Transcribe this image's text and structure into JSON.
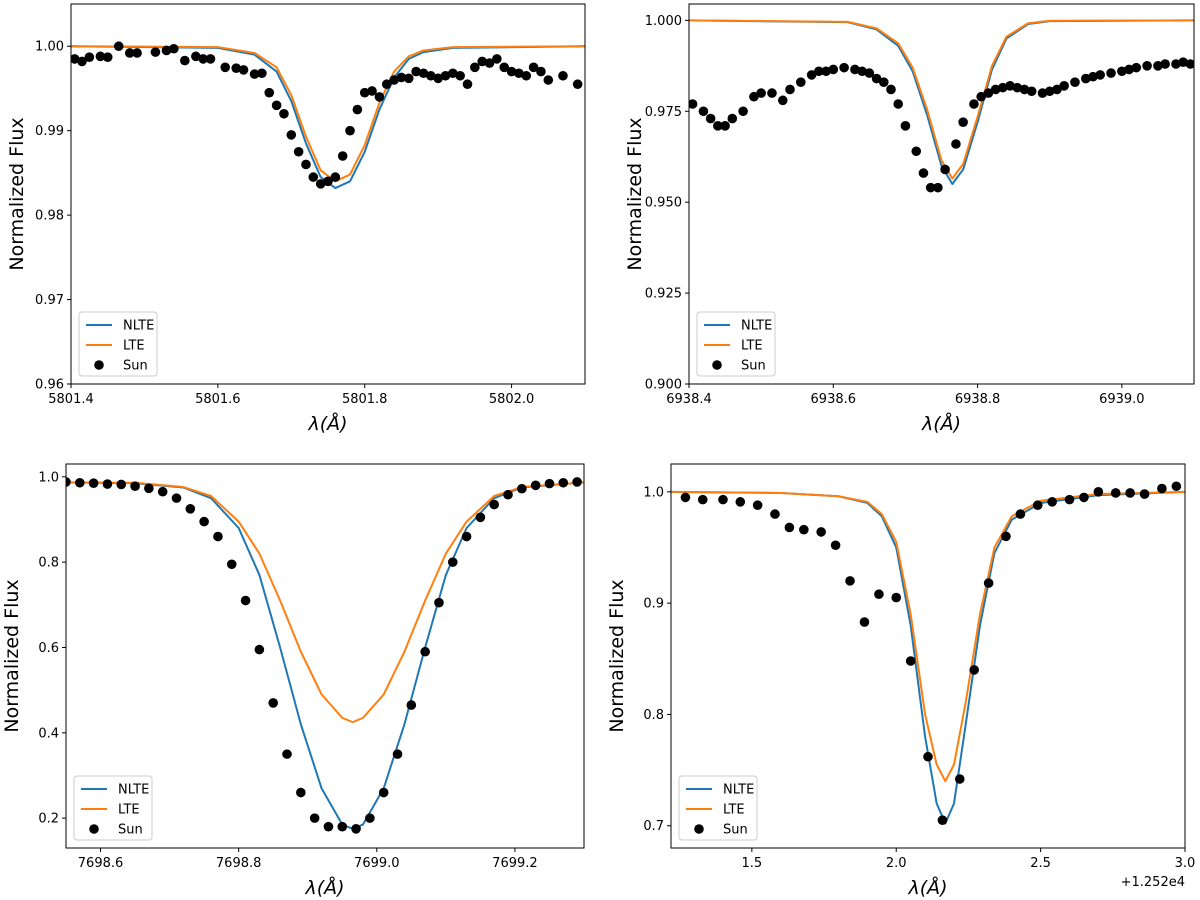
{
  "colors": {
    "nlte": "#1f77b4",
    "lte": "#ff7f0e",
    "sun": "#000000"
  },
  "chart_data": [
    {
      "type": "line",
      "title": "",
      "xlabel": "λ(Å)",
      "ylabel": "Normalized Flux",
      "xlim": [
        5801.4,
        5802.1
      ],
      "ylim": [
        0.96,
        1.005
      ],
      "xticks": [
        5801.4,
        5801.6,
        5801.8,
        5802.0
      ],
      "xtick_labels": [
        "5801.4",
        "5801.6",
        "5801.8",
        "5802.0"
      ],
      "yticks": [
        0.96,
        0.97,
        0.98,
        0.99,
        1.0
      ],
      "ytick_labels": [
        "0.96",
        "0.97",
        "0.98",
        "0.99",
        "1.00"
      ],
      "x_offset_label": "",
      "legend": [
        "NLTE",
        "LTE",
        "Sun"
      ],
      "legend_loc": "lower left",
      "series": [
        {
          "name": "NLTE",
          "style": "line",
          "x": [
            5801.4,
            5801.6,
            5801.65,
            5801.68,
            5801.7,
            5801.72,
            5801.74,
            5801.76,
            5801.78,
            5801.8,
            5801.82,
            5801.84,
            5801.86,
            5801.88,
            5801.92,
            5802.1
          ],
          "y": [
            1.0,
            0.9998,
            0.999,
            0.997,
            0.9935,
            0.9885,
            0.9845,
            0.9832,
            0.984,
            0.9875,
            0.9925,
            0.9963,
            0.9985,
            0.9993,
            0.9998,
            1.0
          ]
        },
        {
          "name": "LTE",
          "style": "line",
          "x": [
            5801.4,
            5801.6,
            5801.65,
            5801.68,
            5801.7,
            5801.72,
            5801.74,
            5801.76,
            5801.78,
            5801.8,
            5801.82,
            5801.84,
            5801.86,
            5801.88,
            5801.92,
            5802.1
          ],
          "y": [
            1.0,
            0.9999,
            0.9992,
            0.9975,
            0.9942,
            0.9893,
            0.9853,
            0.984,
            0.9848,
            0.9883,
            0.9933,
            0.997,
            0.9988,
            0.9995,
            0.9999,
            1.0
          ]
        },
        {
          "name": "Sun",
          "style": "scatter",
          "x": [
            5801.405,
            5801.415,
            5801.425,
            5801.44,
            5801.45,
            5801.465,
            5801.48,
            5801.49,
            5801.515,
            5801.53,
            5801.54,
            5801.555,
            5801.57,
            5801.58,
            5801.59,
            5801.61,
            5801.625,
            5801.635,
            5801.65,
            5801.66,
            5801.67,
            5801.68,
            5801.69,
            5801.7,
            5801.71,
            5801.72,
            5801.73,
            5801.74,
            5801.75,
            5801.76,
            5801.77,
            5801.78,
            5801.79,
            5801.8,
            5801.81,
            5801.82,
            5801.83,
            5801.84,
            5801.85,
            5801.86,
            5801.87,
            5801.88,
            5801.89,
            5801.9,
            5801.91,
            5801.92,
            5801.93,
            5801.94,
            5801.95,
            5801.96,
            5801.97,
            5801.98,
            5801.99,
            5802.0,
            5802.01,
            5802.02,
            5802.03,
            5802.04,
            5802.05,
            5802.07,
            5802.09
          ],
          "y": [
            0.9985,
            0.9982,
            0.9987,
            0.9988,
            0.9987,
            1.0,
            0.9992,
            0.9992,
            0.9993,
            0.9995,
            0.9997,
            0.9983,
            0.9988,
            0.9985,
            0.9985,
            0.9975,
            0.9974,
            0.9972,
            0.9967,
            0.9968,
            0.9945,
            0.993,
            0.992,
            0.9895,
            0.9875,
            0.986,
            0.9845,
            0.9837,
            0.984,
            0.9845,
            0.987,
            0.99,
            0.9925,
            0.9945,
            0.9947,
            0.994,
            0.9955,
            0.996,
            0.9963,
            0.9962,
            0.997,
            0.9968,
            0.9965,
            0.9962,
            0.9965,
            0.9968,
            0.9965,
            0.9955,
            0.9975,
            0.9982,
            0.998,
            0.9985,
            0.9975,
            0.997,
            0.9968,
            0.9965,
            0.9975,
            0.997,
            0.996,
            0.9965,
            0.9955
          ]
        }
      ]
    },
    {
      "type": "line",
      "title": "",
      "xlabel": "λ(Å)",
      "ylabel": "Normalized Flux",
      "xlim": [
        6938.4,
        6939.1
      ],
      "ylim": [
        0.9,
        1.0045
      ],
      "xticks": [
        6938.4,
        6938.6,
        6938.8,
        6939.0
      ],
      "xtick_labels": [
        "6938.4",
        "6938.6",
        "6938.8",
        "6939.0"
      ],
      "yticks": [
        0.9,
        0.925,
        0.95,
        0.975,
        1.0
      ],
      "ytick_labels": [
        "0.900",
        "0.925",
        "0.950",
        "0.975",
        "1.000"
      ],
      "x_offset_label": "",
      "legend": [
        "NLTE",
        "LTE",
        "Sun"
      ],
      "legend_loc": "lower left",
      "series": [
        {
          "name": "NLTE",
          "style": "line",
          "x": [
            6938.4,
            6938.62,
            6938.66,
            6938.69,
            6938.71,
            6938.73,
            6938.75,
            6938.765,
            6938.78,
            6938.8,
            6938.82,
            6938.84,
            6938.87,
            6938.9,
            6939.1
          ],
          "y": [
            1.0,
            0.9995,
            0.9975,
            0.993,
            0.986,
            0.974,
            0.96,
            0.955,
            0.959,
            0.972,
            0.9865,
            0.995,
            0.999,
            0.9998,
            1.0
          ]
        },
        {
          "name": "LTE",
          "style": "line",
          "x": [
            6938.4,
            6938.62,
            6938.66,
            6938.69,
            6938.71,
            6938.73,
            6938.75,
            6938.765,
            6938.78,
            6938.8,
            6938.82,
            6938.84,
            6938.87,
            6938.9,
            6939.1
          ],
          "y": [
            1.0,
            0.9996,
            0.9978,
            0.9937,
            0.987,
            0.9755,
            0.9615,
            0.9565,
            0.9605,
            0.9735,
            0.9875,
            0.9955,
            0.9992,
            0.9999,
            1.0
          ]
        },
        {
          "name": "Sun",
          "style": "scatter",
          "x": [
            6938.405,
            6938.42,
            6938.43,
            6938.44,
            6938.45,
            6938.46,
            6938.475,
            6938.49,
            6938.5,
            6938.515,
            6938.53,
            6938.54,
            6938.555,
            6938.57,
            6938.58,
            6938.59,
            6938.6,
            6938.615,
            6938.63,
            6938.64,
            6938.65,
            6938.66,
            6938.67,
            6938.68,
            6938.69,
            6938.7,
            6938.715,
            6938.725,
            6938.735,
            6938.745,
            6938.755,
            6938.77,
            6938.78,
            6938.795,
            6938.805,
            6938.815,
            6938.825,
            6938.835,
            6938.845,
            6938.855,
            6938.865,
            6938.875,
            6938.89,
            6938.9,
            6938.91,
            6938.92,
            6938.935,
            6938.95,
            6938.96,
            6938.97,
            6938.985,
            6939.0,
            6939.01,
            6939.02,
            6939.035,
            6939.05,
            6939.06,
            6939.075,
            6939.085,
            6939.095
          ],
          "y": [
            0.977,
            0.975,
            0.973,
            0.971,
            0.971,
            0.973,
            0.975,
            0.979,
            0.98,
            0.98,
            0.978,
            0.981,
            0.983,
            0.985,
            0.986,
            0.986,
            0.9865,
            0.987,
            0.9865,
            0.986,
            0.9855,
            0.984,
            0.983,
            0.981,
            0.977,
            0.971,
            0.964,
            0.958,
            0.954,
            0.954,
            0.959,
            0.966,
            0.972,
            0.977,
            0.979,
            0.98,
            0.981,
            0.9815,
            0.982,
            0.9815,
            0.981,
            0.9805,
            0.98,
            0.9805,
            0.981,
            0.982,
            0.983,
            0.984,
            0.9845,
            0.985,
            0.9855,
            0.986,
            0.9865,
            0.987,
            0.9875,
            0.9875,
            0.988,
            0.988,
            0.9885,
            0.988
          ]
        }
      ]
    },
    {
      "type": "line",
      "title": "",
      "xlabel": "λ(Å)",
      "ylabel": "Normalized Flux",
      "xlim": [
        7698.55,
        7699.3
      ],
      "ylim": [
        0.13,
        1.03
      ],
      "xticks": [
        7698.6,
        7698.8,
        7699.0,
        7699.2
      ],
      "xtick_labels": [
        "7698.6",
        "7698.8",
        "7699.0",
        "7699.2"
      ],
      "yticks": [
        0.2,
        0.4,
        0.6,
        0.8,
        1.0
      ],
      "ytick_labels": [
        "0.2",
        "0.4",
        "0.6",
        "0.8",
        "1.0"
      ],
      "x_offset_label": "",
      "legend": [
        "NLTE",
        "LTE",
        "Sun"
      ],
      "legend_loc": "lower left",
      "series": [
        {
          "name": "NLTE",
          "style": "line",
          "x": [
            7698.55,
            7698.65,
            7698.72,
            7698.76,
            7698.8,
            7698.83,
            7698.86,
            7698.89,
            7698.92,
            7698.95,
            7698.965,
            7698.98,
            7699.01,
            7699.04,
            7699.07,
            7699.1,
            7699.13,
            7699.17,
            7699.21,
            7699.3
          ],
          "y": [
            0.987,
            0.985,
            0.975,
            0.95,
            0.88,
            0.77,
            0.6,
            0.42,
            0.27,
            0.185,
            0.175,
            0.185,
            0.27,
            0.42,
            0.6,
            0.77,
            0.88,
            0.95,
            0.975,
            0.987
          ]
        },
        {
          "name": "LTE",
          "style": "line",
          "x": [
            7698.55,
            7698.65,
            7698.72,
            7698.76,
            7698.8,
            7698.83,
            7698.86,
            7698.89,
            7698.92,
            7698.95,
            7698.965,
            7698.98,
            7699.01,
            7699.04,
            7699.07,
            7699.1,
            7699.13,
            7699.17,
            7699.21,
            7699.3
          ],
          "y": [
            0.987,
            0.986,
            0.976,
            0.955,
            0.895,
            0.82,
            0.71,
            0.59,
            0.49,
            0.435,
            0.425,
            0.435,
            0.49,
            0.59,
            0.71,
            0.82,
            0.895,
            0.955,
            0.976,
            0.987
          ]
        },
        {
          "name": "Sun",
          "style": "scatter",
          "x": [
            7698.55,
            7698.57,
            7698.59,
            7698.61,
            7698.63,
            7698.65,
            7698.67,
            7698.69,
            7698.71,
            7698.73,
            7698.75,
            7698.77,
            7698.79,
            7698.81,
            7698.83,
            7698.85,
            7698.87,
            7698.89,
            7698.91,
            7698.93,
            7698.95,
            7698.97,
            7698.99,
            7699.01,
            7699.03,
            7699.05,
            7699.07,
            7699.09,
            7699.11,
            7699.13,
            7699.15,
            7699.17,
            7699.19,
            7699.21,
            7699.23,
            7699.25,
            7699.27,
            7699.29
          ],
          "y": [
            0.988,
            0.986,
            0.985,
            0.983,
            0.982,
            0.978,
            0.973,
            0.965,
            0.95,
            0.925,
            0.895,
            0.86,
            0.795,
            0.71,
            0.595,
            0.47,
            0.35,
            0.26,
            0.2,
            0.18,
            0.18,
            0.175,
            0.2,
            0.26,
            0.35,
            0.465,
            0.59,
            0.705,
            0.8,
            0.86,
            0.905,
            0.935,
            0.958,
            0.972,
            0.98,
            0.984,
            0.986,
            0.988
          ]
        }
      ]
    },
    {
      "type": "line",
      "title": "",
      "xlabel": "λ(Å)",
      "ylabel": "Normalized Flux",
      "xlim": [
        1.22,
        3.0
      ],
      "ylim": [
        0.68,
        1.025
      ],
      "xticks": [
        1.5,
        2.0,
        2.5,
        3.0
      ],
      "xtick_labels": [
        "1.5",
        "2.0",
        "2.5",
        "3.0"
      ],
      "yticks": [
        0.7,
        0.8,
        0.9,
        1.0
      ],
      "ytick_labels": [
        "0.7",
        "0.8",
        "0.9",
        "1.0"
      ],
      "x_offset_label": "+1.252e4",
      "legend": [
        "NLTE",
        "LTE",
        "Sun"
      ],
      "legend_loc": "lower left",
      "series": [
        {
          "name": "NLTE",
          "style": "line",
          "x": [
            1.22,
            1.6,
            1.8,
            1.9,
            1.95,
            2.0,
            2.05,
            2.1,
            2.14,
            2.17,
            2.2,
            2.24,
            2.29,
            2.34,
            2.4,
            2.5,
            2.7,
            3.0
          ],
          "y": [
            1.0,
            0.999,
            0.996,
            0.99,
            0.978,
            0.95,
            0.88,
            0.78,
            0.72,
            0.702,
            0.72,
            0.79,
            0.88,
            0.945,
            0.975,
            0.99,
            0.997,
            1.0
          ]
        },
        {
          "name": "LTE",
          "style": "line",
          "x": [
            1.22,
            1.6,
            1.8,
            1.9,
            1.95,
            2.0,
            2.05,
            2.1,
            2.14,
            2.17,
            2.2,
            2.24,
            2.29,
            2.34,
            2.4,
            2.5,
            2.7,
            3.0
          ],
          "y": [
            1.0,
            0.999,
            0.996,
            0.991,
            0.98,
            0.955,
            0.89,
            0.8,
            0.755,
            0.74,
            0.755,
            0.81,
            0.89,
            0.95,
            0.978,
            0.992,
            0.998,
            1.0
          ]
        },
        {
          "name": "Sun",
          "style": "scatter",
          "x": [
            1.27,
            1.33,
            1.4,
            1.46,
            1.52,
            1.58,
            1.63,
            1.68,
            1.74,
            1.79,
            1.84,
            1.89,
            1.94,
            2.0,
            2.05,
            2.11,
            2.16,
            2.22,
            2.27,
            2.32,
            2.38,
            2.43,
            2.49,
            2.54,
            2.6,
            2.65,
            2.7,
            2.76,
            2.81,
            2.86,
            2.92,
            2.97
          ],
          "y": [
            0.995,
            0.993,
            0.993,
            0.991,
            0.988,
            0.98,
            0.968,
            0.966,
            0.964,
            0.952,
            0.92,
            0.883,
            0.908,
            0.905,
            0.848,
            0.762,
            0.705,
            0.742,
            0.84,
            0.918,
            0.96,
            0.98,
            0.988,
            0.991,
            0.993,
            0.995,
            1.0,
            0.999,
            0.999,
            0.998,
            1.003,
            1.005
          ]
        }
      ]
    }
  ]
}
